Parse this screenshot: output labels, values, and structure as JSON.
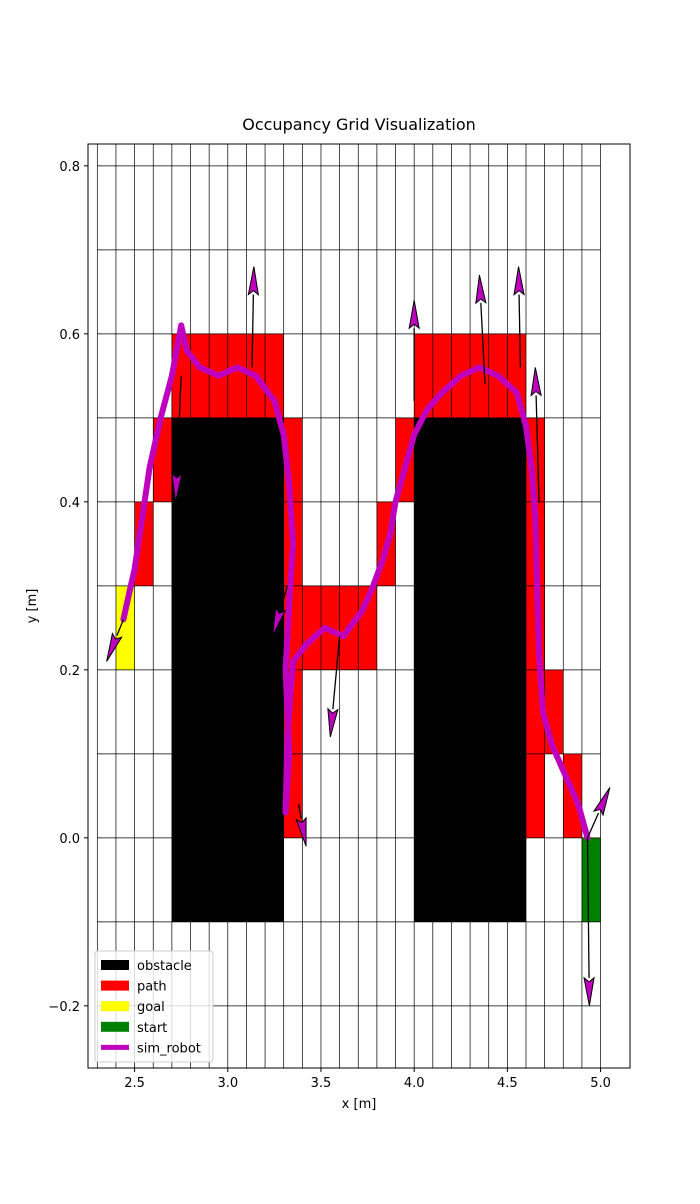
{
  "chart_data": {
    "type": "occupancy_grid",
    "title": "Occupancy Grid Visualization",
    "xlabel": "x [m]",
    "ylabel": "y [m]",
    "xlim": [
      2.25,
      5.158
    ],
    "ylim": [
      -0.274,
      0.826
    ],
    "xticks": [
      {
        "value": 2.5,
        "label": "2.5"
      },
      {
        "value": 3.0,
        "label": "3.0"
      },
      {
        "value": 3.5,
        "label": "3.5"
      },
      {
        "value": 4.0,
        "label": "4.0"
      },
      {
        "value": 4.5,
        "label": "4.5"
      },
      {
        "value": 5.0,
        "label": "5.0"
      }
    ],
    "yticks": [
      {
        "value": -0.2,
        "label": "−0.2"
      },
      {
        "value": 0.0,
        "label": "0.0"
      },
      0.2,
      0.4,
      0.6,
      0.8
    ],
    "grid_x": [
      2.3,
      2.4,
      2.5,
      2.6,
      2.7,
      2.8,
      2.9,
      3.0,
      3.1,
      3.2,
      3.3,
      3.4,
      3.5,
      3.6,
      3.7,
      3.8,
      3.9,
      4.0,
      4.1,
      4.2,
      4.3,
      4.4,
      4.5,
      4.6,
      4.7,
      4.8,
      4.9,
      5.0
    ],
    "grid_y": [
      -0.2,
      -0.1,
      0.0,
      0.1,
      0.2,
      0.3,
      0.4,
      0.5,
      0.6,
      0.7,
      0.8
    ],
    "legend": "lower left",
    "layers": [
      {
        "name": "obstacle",
        "color": "#000000",
        "cells": [
          [
            2.7,
            -0.1,
            3.3,
            0.5
          ],
          [
            4.0,
            -0.1,
            4.6,
            0.5
          ]
        ]
      },
      {
        "name": "path",
        "color": "#ff0000",
        "cells": [
          [
            2.5,
            0.3,
            2.6,
            0.4
          ],
          [
            2.6,
            0.4,
            2.7,
            0.5
          ],
          [
            2.7,
            0.5,
            3.3,
            0.6
          ],
          [
            3.3,
            0.0,
            3.4,
            0.5
          ],
          [
            3.4,
            0.2,
            3.8,
            0.3
          ],
          [
            3.8,
            0.3,
            3.9,
            0.4
          ],
          [
            3.9,
            0.4,
            4.0,
            0.5
          ],
          [
            4.0,
            0.5,
            4.6,
            0.6
          ],
          [
            4.6,
            0.0,
            4.7,
            0.5
          ],
          [
            4.7,
            0.1,
            4.8,
            0.2
          ],
          [
            4.8,
            0.0,
            4.9,
            0.1
          ]
        ]
      },
      {
        "name": "goal",
        "color": "#ffff00",
        "cells": [
          [
            2.4,
            0.2,
            2.5,
            0.3
          ]
        ]
      },
      {
        "name": "start",
        "color": "#008000",
        "cells": [
          [
            4.9,
            -0.1,
            5.0,
            0.0
          ]
        ]
      }
    ],
    "robot": {
      "name": "sim_robot",
      "color": "#bf00bf",
      "x": [
        4.93,
        4.88,
        4.8,
        4.74,
        4.69,
        4.67,
        4.66,
        4.65,
        4.63,
        4.6,
        4.55,
        4.45,
        4.35,
        4.25,
        4.15,
        4.07,
        4.0,
        3.95,
        3.9,
        3.87,
        3.83,
        3.78,
        3.72,
        3.62,
        3.52,
        3.42,
        3.35,
        3.32,
        3.31,
        3.33,
        3.31,
        3.33,
        3.35,
        3.33,
        3.3,
        3.25,
        3.15,
        3.05,
        2.95,
        2.85,
        2.78,
        2.75,
        2.7,
        2.64,
        2.58,
        2.54,
        2.5,
        2.46,
        2.44
      ],
      "y": [
        0.0,
        0.04,
        0.08,
        0.11,
        0.15,
        0.22,
        0.3,
        0.38,
        0.44,
        0.49,
        0.53,
        0.55,
        0.56,
        0.55,
        0.53,
        0.51,
        0.48,
        0.44,
        0.4,
        0.36,
        0.33,
        0.3,
        0.27,
        0.24,
        0.25,
        0.23,
        0.21,
        0.12,
        0.03,
        0.1,
        0.2,
        0.28,
        0.35,
        0.42,
        0.48,
        0.52,
        0.55,
        0.56,
        0.55,
        0.56,
        0.58,
        0.61,
        0.55,
        0.5,
        0.44,
        0.38,
        0.32,
        0.28,
        0.26
      ],
      "arrows": {
        "x": [
          4.93,
          4.93,
          4.57,
          4.0,
          3.6,
          3.38,
          3.13,
          3.32,
          2.75,
          2.44,
          4.67,
          4.38
        ],
        "y": [
          0.0,
          0.0,
          0.56,
          0.52,
          0.24,
          0.04,
          0.56,
          0.3,
          0.55,
          0.26,
          0.4,
          0.54
        ],
        "u": [
          0.01,
          0.12,
          -0.01,
          0.0,
          -0.05,
          0.04,
          0.01,
          -0.08,
          -0.03,
          -0.09,
          -0.02,
          -0.03
        ],
        "v": [
          -0.2,
          0.06,
          0.12,
          0.12,
          -0.12,
          -0.05,
          0.12,
          -0.06,
          -0.15,
          -0.05,
          0.16,
          0.13
        ]
      }
    }
  }
}
